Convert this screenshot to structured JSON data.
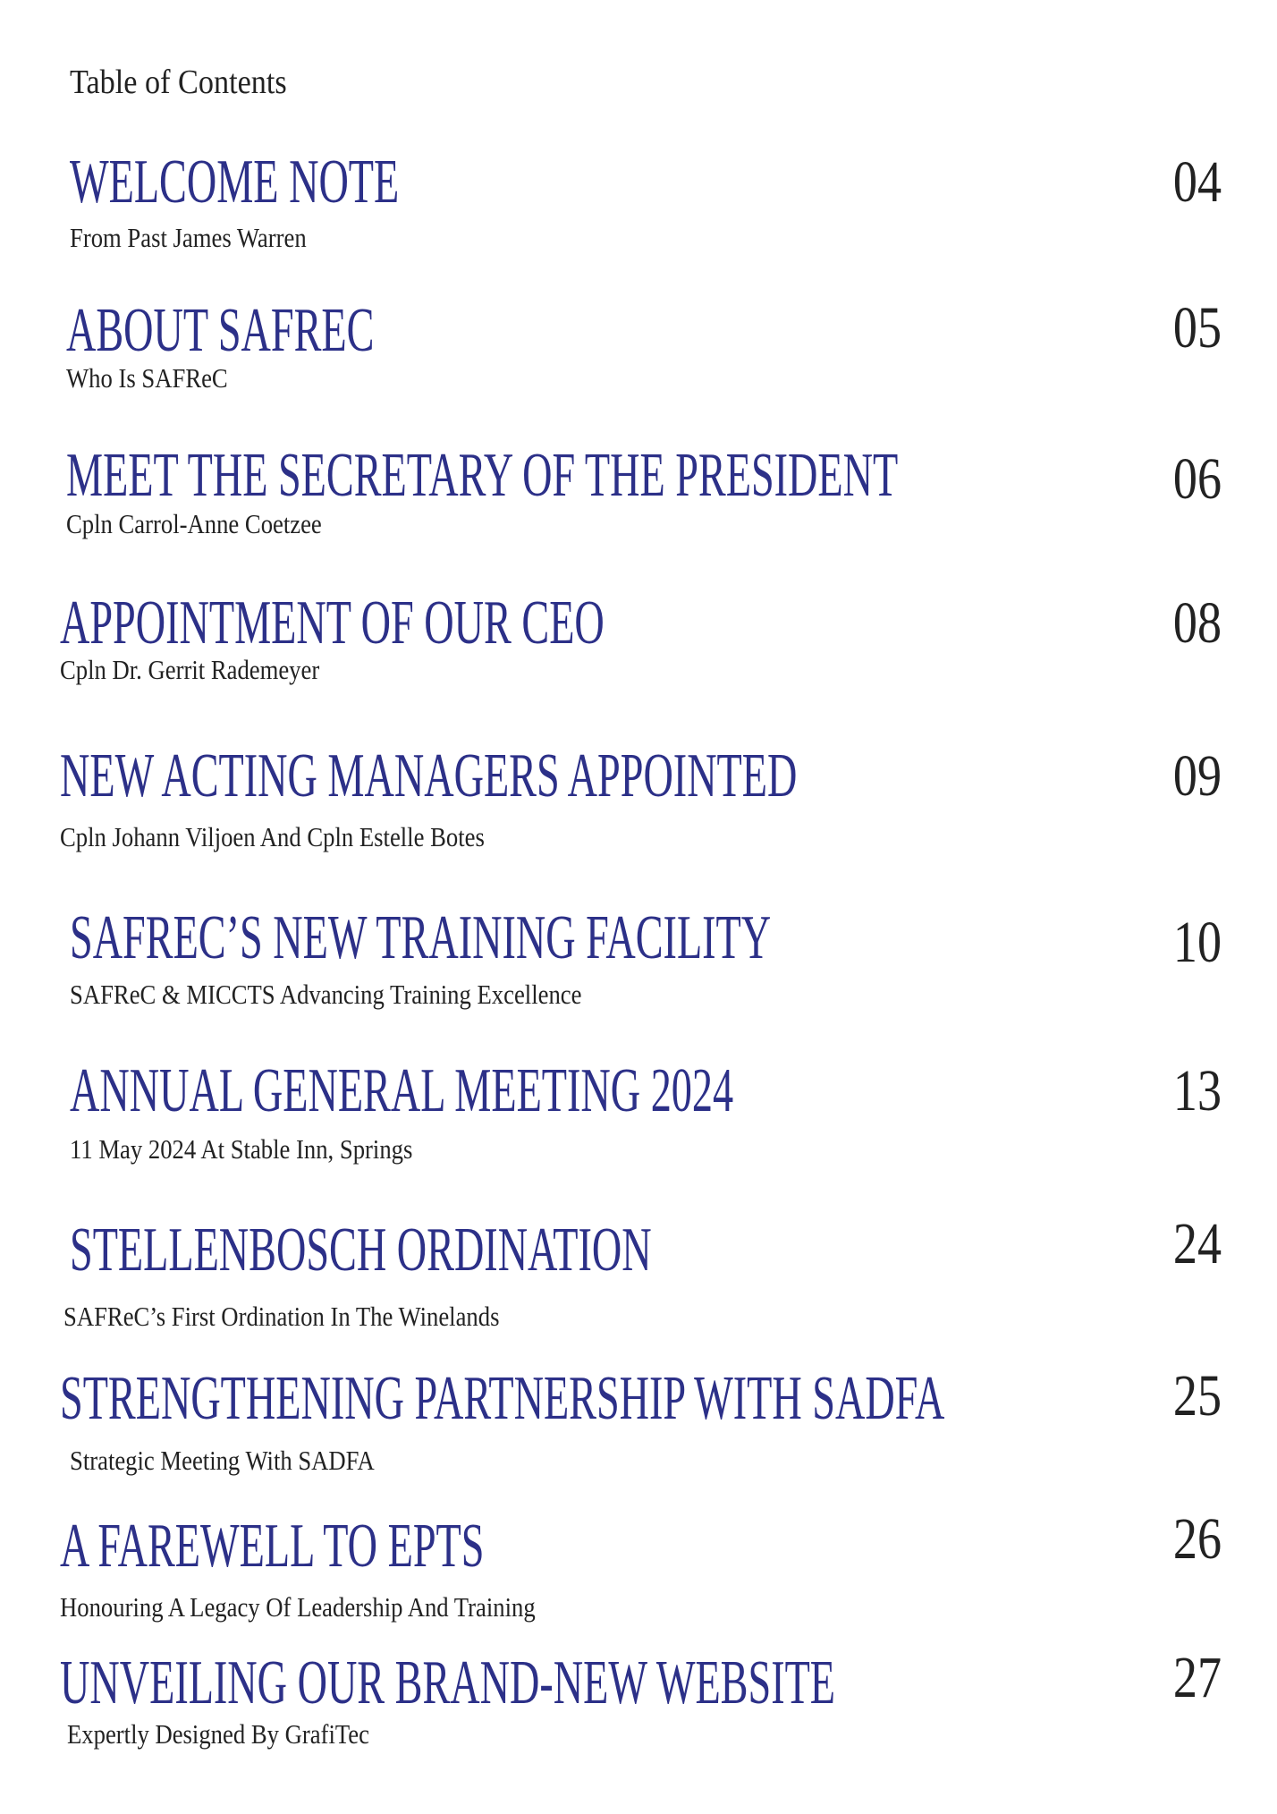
{
  "header": {
    "title": "Table of Contents"
  },
  "entries": [
    {
      "title": "WELCOME NOTE",
      "subtitle": "From Past James Warren",
      "page": "04"
    },
    {
      "title": "ABOUT SAFREC",
      "subtitle": "Who Is SAFReC",
      "page": "05"
    },
    {
      "title": "MEET THE SECRETARY OF THE PRESIDENT",
      "subtitle": "Cpln Carrol-Anne Coetzee",
      "page": "06"
    },
    {
      "title": "APPOINTMENT OF OUR CEO",
      "subtitle": "Cpln Dr. Gerrit Rademeyer",
      "page": "08"
    },
    {
      "title": "NEW ACTING MANAGERS APPOINTED",
      "subtitle": "Cpln Johann Viljoen And Cpln Estelle Botes",
      "page": "09"
    },
    {
      "title": "SAFREC’S NEW TRAINING FACILITY",
      "subtitle": "SAFReC & MICCTS Advancing Training Excellence",
      "page": "10"
    },
    {
      "title": "ANNUAL GENERAL MEETING 2024",
      "subtitle": "11 May 2024 At Stable Inn, Springs",
      "page": "13"
    },
    {
      "title": "STELLENBOSCH ORDINATION",
      "subtitle": "SAFReC’s First Ordination In The Winelands",
      "page": "24"
    },
    {
      "title": "STRENGTHENING PARTNERSHIP WITH SADFA",
      "subtitle": "Strategic Meeting With SADFA",
      "page": "25"
    },
    {
      "title": "A FAREWELL TO EPTS",
      "subtitle": "Honouring A Legacy Of Leadership And Training",
      "page": "26"
    },
    {
      "title": "UNVEILING OUR BRAND-NEW WEBSITE",
      "subtitle": "Expertly Designed By GrafiTec",
      "page": "27"
    }
  ]
}
